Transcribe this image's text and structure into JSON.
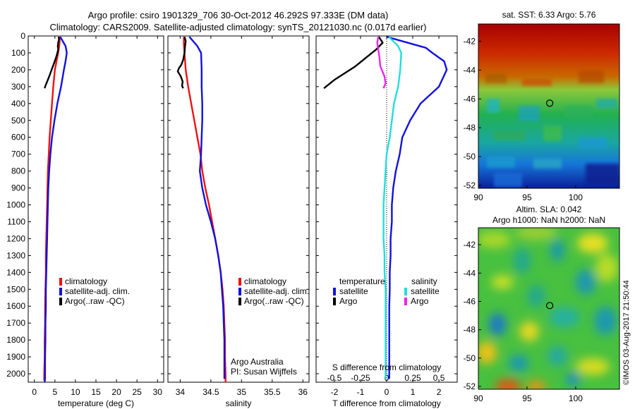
{
  "header": {
    "line1": "Argo profile: csiro 1901329_706 30-Oct-2012 46.292S 97.333E (DM data)",
    "line2": "Climatology: CARS2009. Satellite-adjusted climatology: synTS_20121030.nc (0.017d earlier)"
  },
  "colors": {
    "climatology": "#ee1111",
    "satellite": "#1111dd",
    "argo": "#000000",
    "salinity_satellite": "#22dddd",
    "salinity_argo": "#ee22ee"
  },
  "legend": {
    "climatology": "climatology",
    "satellite_adj": "satellite-adj. clim.",
    "argo_raw": "Argo(..raw -QC)",
    "temperature_header": "temperature",
    "salinity_header": "salinity",
    "satellite": "satellite",
    "argo": "Argo"
  },
  "annotations": {
    "argo_australia": "Argo Australia",
    "pi": "PI: Susan Wijffels",
    "imos_stamp": "©IMOS 03-Aug-2017 21:50:44"
  },
  "map_panels": {
    "sst_title": "sat. SST: 6.33 Argo: 5.76",
    "sla_title1": "Altim. SLA: 0.042",
    "sla_title2": "Argo h1000: NaN h2000: NaN",
    "profile_location": {
      "lon": 97.333,
      "lat": -46.292
    }
  },
  "chart_data": [
    {
      "type": "line",
      "xlabel": "temperature (deg C)",
      "ylabel": "",
      "xlim": [
        -1.5,
        31.5
      ],
      "ylim": [
        2050,
        0
      ],
      "xticks": [
        0,
        5,
        10,
        15,
        20,
        25,
        30
      ],
      "yticks": [
        0,
        100,
        200,
        300,
        400,
        500,
        600,
        700,
        800,
        900,
        1000,
        1100,
        1200,
        1300,
        1400,
        1500,
        1600,
        1700,
        1800,
        1900,
        2000
      ],
      "series": [
        {
          "name": "climatology",
          "x": [
            6.2,
            6.1,
            5.8,
            5.4,
            5.0,
            4.6,
            4.3,
            4.0,
            3.7,
            3.5,
            3.3,
            3.2,
            3.1,
            3.0,
            2.9,
            2.8,
            2.8,
            2.7,
            2.6,
            2.6,
            2.5,
            2.5,
            2.4,
            2.4
          ],
          "y": [
            5,
            50,
            100,
            150,
            200,
            300,
            400,
            500,
            600,
            700,
            800,
            900,
            1000,
            1100,
            1200,
            1300,
            1400,
            1500,
            1600,
            1700,
            1800,
            1900,
            2000,
            2040
          ]
        },
        {
          "name": "satellite-adj. clim.",
          "x": [
            6.3,
            7.6,
            7.9,
            7.6,
            7.2,
            6.5,
            5.6,
            4.9,
            4.3,
            3.9,
            3.6,
            3.4,
            3.3,
            3.2,
            3.1,
            3.0,
            2.9,
            2.8,
            2.8,
            2.7,
            2.7,
            2.6,
            2.6,
            2.6,
            2.5
          ],
          "y": [
            5,
            60,
            100,
            150,
            200,
            300,
            400,
            500,
            600,
            700,
            800,
            900,
            1000,
            1100,
            1200,
            1300,
            1400,
            1500,
            1600,
            1700,
            1800,
            1900,
            2000,
            2030,
            2050
          ]
        },
        {
          "name": "Argo(..raw -QC)",
          "x": [
            5.9,
            6.0,
            5.8,
            5.7,
            5.8,
            5.4,
            4.8,
            4.2,
            3.6,
            3.1,
            2.7,
            2.5
          ],
          "y": [
            5,
            20,
            40,
            60,
            80,
            120,
            160,
            200,
            240,
            270,
            295,
            310
          ]
        }
      ]
    },
    {
      "type": "line",
      "xlabel": "salinity",
      "ylabel": "",
      "xlim": [
        33.8,
        36.1
      ],
      "ylim": [
        2050,
        0
      ],
      "xticks": [
        34,
        34.5,
        35,
        35.5,
        36
      ],
      "series": [
        {
          "name": "climatology",
          "x": [
            34.06,
            34.06,
            34.07,
            34.09,
            34.13,
            34.18,
            34.23,
            34.28,
            34.33,
            34.36,
            34.41,
            34.47,
            34.52,
            34.57,
            34.62,
            34.66,
            34.69,
            34.71,
            34.72,
            34.73,
            34.73,
            34.74,
            34.74,
            34.74
          ],
          "y": [
            5,
            50,
            100,
            200,
            300,
            400,
            500,
            600,
            700,
            800,
            900,
            1000,
            1100,
            1200,
            1300,
            1400,
            1500,
            1600,
            1700,
            1800,
            1900,
            2000,
            2030,
            2050
          ]
        },
        {
          "name": "satellite-adj. clim.",
          "x": [
            34.15,
            34.28,
            34.34,
            34.35,
            34.35,
            34.36,
            34.36,
            34.35,
            34.34,
            34.33,
            34.32,
            34.36,
            34.42,
            34.5,
            34.57,
            34.62,
            34.66,
            34.68,
            34.7,
            34.71,
            34.72,
            34.72,
            34.72
          ],
          "y": [
            5,
            60,
            100,
            200,
            300,
            400,
            500,
            600,
            700,
            750,
            800,
            900,
            1000,
            1100,
            1200,
            1300,
            1400,
            1500,
            1600,
            1700,
            1800,
            1900,
            2030
          ]
        },
        {
          "name": "Argo(..raw -QC)",
          "x": [
            34.07,
            34.09,
            34.08,
            34.07,
            34.05,
            34.02,
            33.98,
            33.96,
            34.01,
            34.04,
            34.03,
            34.05
          ],
          "y": [
            5,
            30,
            60,
            100,
            140,
            170,
            190,
            210,
            240,
            270,
            295,
            310
          ]
        }
      ]
    },
    {
      "type": "line",
      "xlabel": "T difference from climatology",
      "x2label": "S difference from climatology",
      "ylabel": "",
      "xlim": [
        -2.7,
        2.7
      ],
      "x2lim": [
        -0.675,
        0.675
      ],
      "ylim": [
        2050,
        0
      ],
      "xticks": [
        -2,
        -1,
        0,
        1,
        2
      ],
      "x2ticks": [
        -0.5,
        -0.25,
        0,
        0.25,
        0.5
      ],
      "reference_line": 0,
      "series": [
        {
          "name": "temperature satellite",
          "axis": "T",
          "x": [
            0.0,
            1.5,
            1.75,
            2.2,
            2.3,
            2.0,
            1.3,
            0.9,
            0.6,
            0.5,
            0.35,
            0.25,
            0.2,
            0.2,
            0.15,
            0.15,
            0.12,
            0.12,
            0.1,
            0.1,
            0.1,
            0.1
          ],
          "y": [
            5,
            70,
            100,
            150,
            200,
            300,
            400,
            500,
            600,
            700,
            800,
            900,
            1000,
            1100,
            1200,
            1300,
            1400,
            1500,
            1600,
            1700,
            1900,
            2030
          ]
        },
        {
          "name": "temperature Argo",
          "axis": "T",
          "x": [
            -0.3,
            -0.15,
            -0.4,
            -0.8,
            -1.2,
            -1.6,
            -2.0,
            -2.4
          ],
          "y": [
            5,
            40,
            80,
            130,
            180,
            220,
            260,
            310
          ]
        },
        {
          "name": "salinity satellite",
          "axis": "S",
          "x": [
            0.02,
            0.11,
            0.14,
            0.13,
            0.11,
            0.07,
            0.05,
            0.03,
            0.0,
            -0.01,
            -0.02,
            -0.03,
            -0.03,
            -0.03,
            -0.02,
            -0.02,
            -0.01,
            -0.01,
            -0.01,
            -0.01,
            -0.01
          ],
          "y": [
            5,
            60,
            100,
            200,
            300,
            400,
            500,
            600,
            700,
            800,
            900,
            1000,
            1100,
            1200,
            1300,
            1400,
            1500,
            1600,
            1700,
            1800,
            2030
          ]
        },
        {
          "name": "salinity Argo",
          "axis": "S",
          "x": [
            -0.08,
            -0.09,
            -0.08,
            -0.07,
            -0.06,
            -0.02,
            -0.01,
            -0.03
          ],
          "y": [
            5,
            40,
            80,
            120,
            180,
            240,
            280,
            310
          ]
        }
      ]
    },
    {
      "type": "heatmap",
      "title": "sat. SST: 6.33 Argo: 5.76",
      "xlim": [
        90,
        104.5
      ],
      "ylim": [
        -52.2,
        -40.8
      ],
      "xticks": [
        90,
        95,
        100
      ],
      "yticks": [
        -42,
        -44,
        -46,
        -48,
        -50,
        -52
      ],
      "marker": {
        "x": 97.333,
        "y": -46.292
      }
    },
    {
      "type": "heatmap",
      "title": "Altim. SLA: 0.042",
      "xlim": [
        90,
        104.5
      ],
      "ylim": [
        -52.2,
        -40.8
      ],
      "xticks": [
        90,
        95,
        100
      ],
      "yticks": [
        -42,
        -44,
        -46,
        -48,
        -50,
        -52
      ],
      "marker": {
        "x": 97.333,
        "y": -46.292
      }
    }
  ]
}
